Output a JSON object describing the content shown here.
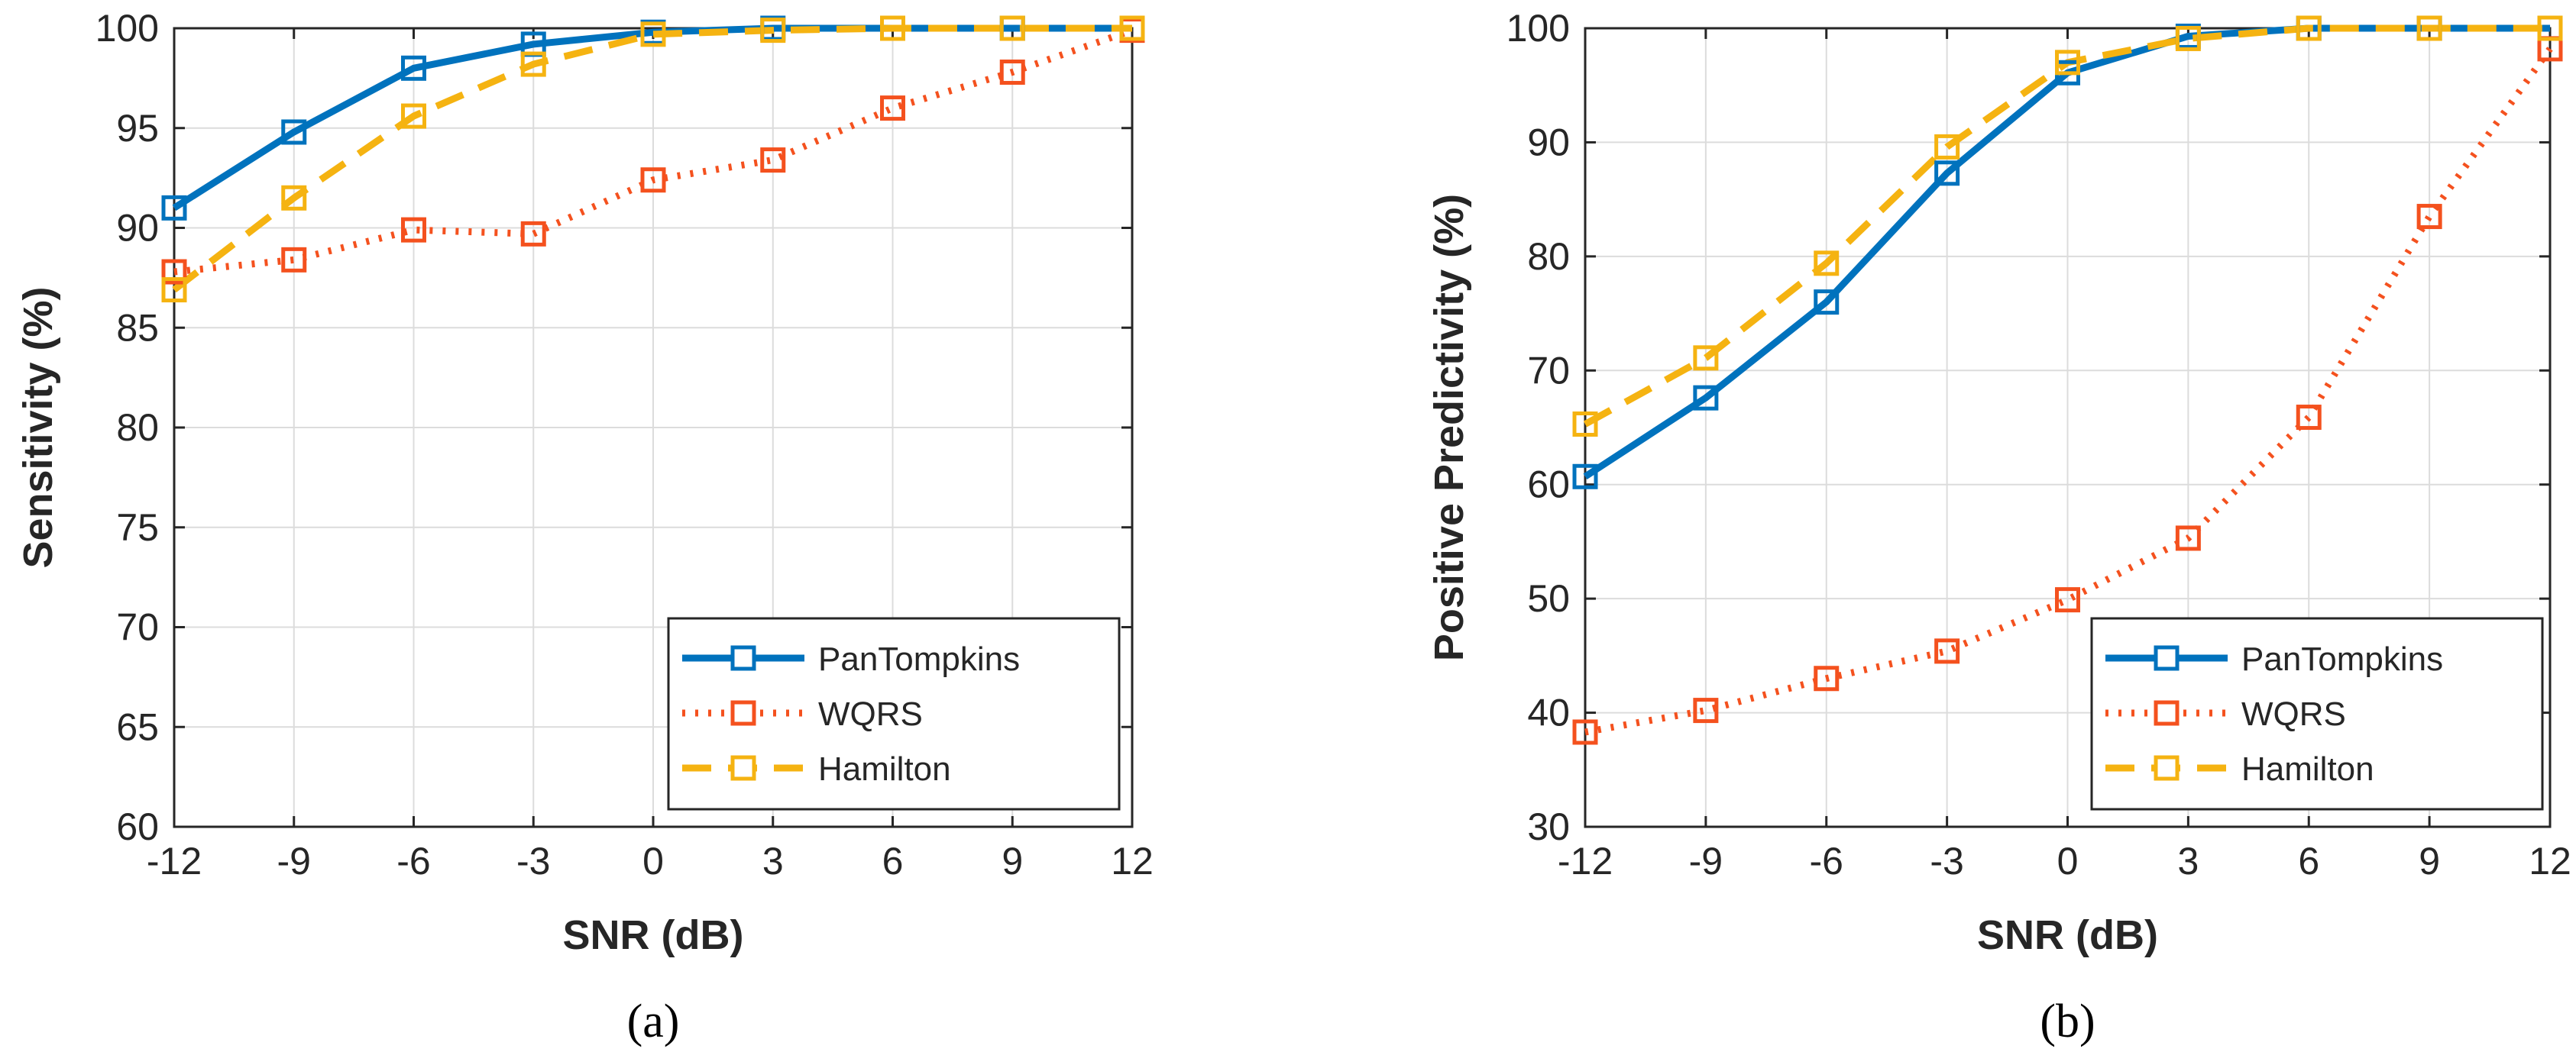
{
  "chart_data": [
    {
      "type": "line",
      "panel_label": "(a)",
      "title": "",
      "xlabel": "SNR (dB)",
      "ylabel": "Sensitivity (%)",
      "x": [
        -12,
        -9,
        -6,
        -3,
        0,
        3,
        6,
        9,
        12
      ],
      "x_tick_labels": [
        "-12",
        "-9",
        "-6",
        "-3",
        "0",
        "3",
        "6",
        "9",
        "12"
      ],
      "xlim": [
        -12,
        12
      ],
      "ylim": [
        60,
        100
      ],
      "y_ticks": [
        60,
        65,
        70,
        75,
        80,
        85,
        90,
        95,
        100
      ],
      "y_tick_labels": [
        "60",
        "65",
        "70",
        "75",
        "80",
        "85",
        "90",
        "95",
        "100"
      ],
      "grid": true,
      "legend_position": "bottom-right",
      "series": [
        {
          "name": "PanTompkins",
          "color": "#0072BD",
          "style": "solid",
          "marker": "square",
          "values": [
            91.0,
            94.8,
            98.0,
            99.2,
            99.8,
            100.0,
            100.0,
            100.0,
            100.0
          ]
        },
        {
          "name": "WQRS",
          "color": "#F4511E",
          "style": "dotted",
          "marker": "square",
          "values": [
            87.8,
            88.4,
            89.9,
            89.7,
            92.4,
            93.4,
            96.0,
            97.8,
            99.9
          ]
        },
        {
          "name": "Hamilton",
          "color": "#F5B311",
          "style": "dashed",
          "marker": "square",
          "values": [
            86.9,
            91.5,
            95.6,
            98.2,
            99.7,
            99.9,
            100.0,
            100.0,
            100.0
          ]
        }
      ]
    },
    {
      "type": "line",
      "panel_label": "(b)",
      "title": "",
      "xlabel": "SNR (dB)",
      "ylabel": "Positive Predictivity (%)",
      "x": [
        -12,
        -9,
        -6,
        -3,
        0,
        3,
        6,
        9,
        12
      ],
      "x_tick_labels": [
        "-12",
        "-9",
        "-6",
        "-3",
        "0",
        "3",
        "6",
        "9",
        "12"
      ],
      "xlim": [
        -12,
        12
      ],
      "ylim": [
        30,
        100
      ],
      "y_ticks": [
        30,
        40,
        50,
        60,
        70,
        80,
        90,
        100
      ],
      "y_tick_labels": [
        "30",
        "40",
        "50",
        "60",
        "70",
        "80",
        "90",
        "100"
      ],
      "grid": true,
      "legend_position": "bottom-right",
      "series": [
        {
          "name": "PanTompkins",
          "color": "#0072BD",
          "style": "solid",
          "marker": "square",
          "values": [
            60.7,
            67.6,
            76.0,
            87.3,
            96.1,
            99.3,
            100.0,
            100.0,
            100.0
          ]
        },
        {
          "name": "WQRS",
          "color": "#F4511E",
          "style": "dotted",
          "marker": "square",
          "values": [
            38.3,
            40.2,
            43.0,
            45.4,
            49.9,
            55.3,
            65.9,
            83.5,
            98.2
          ]
        },
        {
          "name": "Hamilton",
          "color": "#F5B311",
          "style": "dashed",
          "marker": "square",
          "values": [
            65.3,
            71.1,
            79.4,
            89.6,
            97.0,
            99.1,
            100.0,
            100.0,
            100.0
          ]
        }
      ]
    }
  ]
}
